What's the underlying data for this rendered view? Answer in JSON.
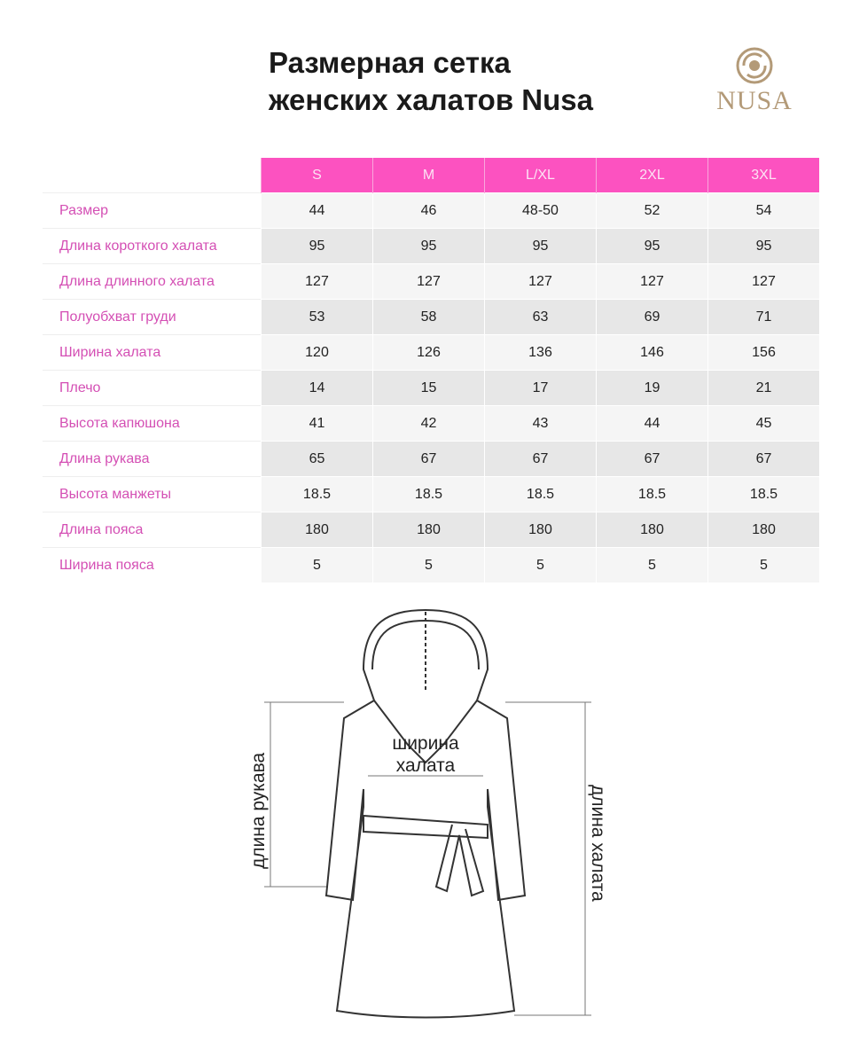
{
  "title": [
    "Размерная сетка",
    "женских халатов Nusa"
  ],
  "logo": {
    "text": "NUSA",
    "color": "#b39a78"
  },
  "colors": {
    "header_bg": "#fc52c0",
    "label_text": "#d44fb4"
  },
  "table": {
    "sizes": [
      "S",
      "M",
      "L/XL",
      "2XL",
      "3XL"
    ],
    "rows": [
      {
        "label": "Размер",
        "values": [
          "44",
          "46",
          "48-50",
          "52",
          "54"
        ]
      },
      {
        "label": "Длина короткого халата",
        "values": [
          "95",
          "95",
          "95",
          "95",
          "95"
        ]
      },
      {
        "label": "Длина длинного халата",
        "values": [
          "127",
          "127",
          "127",
          "127",
          "127"
        ]
      },
      {
        "label": "Полуобхват груди",
        "values": [
          "53",
          "58",
          "63",
          "69",
          "71"
        ]
      },
      {
        "label": "Ширина халата",
        "values": [
          "120",
          "126",
          "136",
          "146",
          "156"
        ]
      },
      {
        "label": "Плечо",
        "values": [
          "14",
          "15",
          "17",
          "19",
          "21"
        ]
      },
      {
        "label": "Высота капюшона",
        "values": [
          "41",
          "42",
          "43",
          "44",
          "45"
        ]
      },
      {
        "label": "Длина рукава",
        "values": [
          "65",
          "67",
          "67",
          "67",
          "67"
        ]
      },
      {
        "label": "Высота манжеты",
        "values": [
          "18.5",
          "18.5",
          "18.5",
          "18.5",
          "18.5"
        ]
      },
      {
        "label": "Длина пояса",
        "values": [
          "180",
          "180",
          "180",
          "180",
          "180"
        ]
      },
      {
        "label": "Ширина пояса",
        "values": [
          "5",
          "5",
          "5",
          "5",
          "5"
        ]
      }
    ]
  },
  "illustration": {
    "width_label": [
      "ширина",
      "халата"
    ],
    "sleeve_label": "длина рукава",
    "length_label": "длина халата"
  }
}
